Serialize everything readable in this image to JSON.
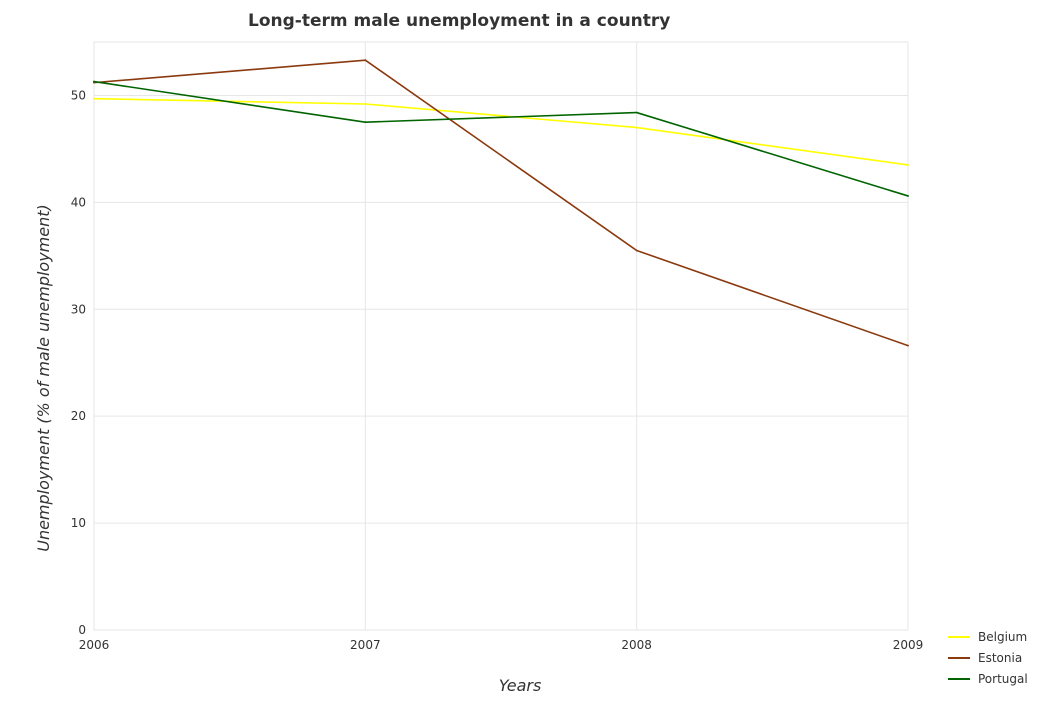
{
  "chart_data": {
    "type": "line",
    "title": "Long-term male unemployment in a country",
    "xlabel": "Years",
    "ylabel": "Unemployment (% of male unemployment)",
    "categories": [
      "2006",
      "2007",
      "2008",
      "2009"
    ],
    "ylim": [
      0,
      55
    ],
    "yticks": [
      0,
      10,
      20,
      30,
      40,
      50
    ],
    "grid": true,
    "legend_position": "bottom-right",
    "series": [
      {
        "name": "Belgium",
        "color": "#ffff00",
        "values": [
          49.7,
          49.2,
          47.0,
          43.5
        ]
      },
      {
        "name": "Estonia",
        "color": "#8b3a0f",
        "values": [
          51.2,
          53.3,
          35.5,
          26.6
        ]
      },
      {
        "name": "Portugal",
        "color": "#006400",
        "values": [
          51.3,
          47.5,
          48.4,
          40.6
        ]
      }
    ]
  }
}
